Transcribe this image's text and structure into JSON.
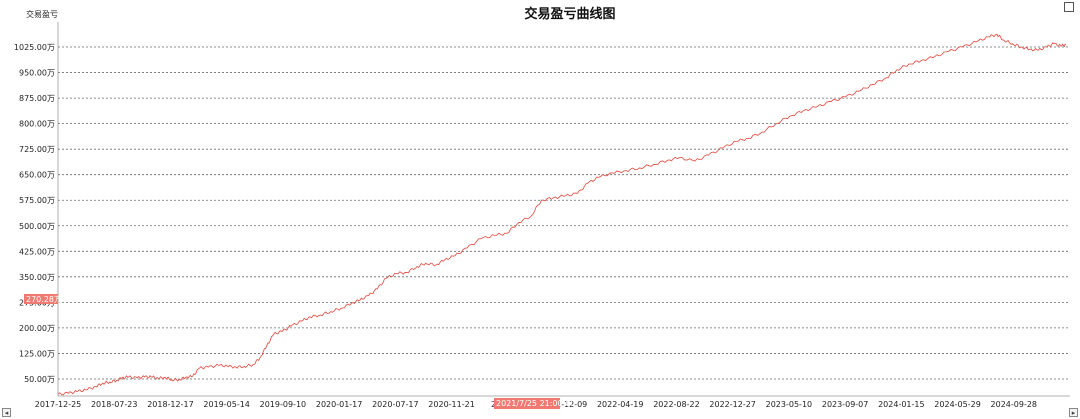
{
  "window": {
    "maximize_icon": "square-icon"
  },
  "scrollbar": {
    "left_arrow": "◂",
    "right_arrow": "▸"
  },
  "chart_data": {
    "type": "line",
    "title": "交易盈亏曲线图",
    "ylabel": "交易盈亏",
    "xlabel": "",
    "ylim": [
      0,
      1075
    ],
    "xlim": [
      "2017-12-25",
      "2024-12-31"
    ],
    "grid": true,
    "line_color": "#e05a4f",
    "y_ticks": [
      50,
      125,
      200,
      275,
      350,
      425,
      500,
      575,
      650,
      725,
      800,
      875,
      950,
      1025
    ],
    "y_tick_labels": [
      "50.00万",
      "125.00万",
      "200.00万",
      "275.00万",
      "350.00万",
      "425.00万",
      "500.00万",
      "575.00万",
      "650.00万",
      "725.00万",
      "800.00万",
      "875.00万",
      "950.00万",
      "1025.00万"
    ],
    "x_tick_labels": [
      "2017-12-25",
      "2018-07-23",
      "2018-12-17",
      "2019-05-14",
      "2019-09-10",
      "2020-01-17",
      "2020-07-17",
      "2020-11-21",
      "2021-03",
      "2021-12-09",
      "2022-04-19",
      "2022-08-22",
      "2022-12-27",
      "2023-05-10",
      "2023-09-07",
      "2024-01-15",
      "2024-05-29",
      "2024-09-28"
    ],
    "crosshair": {
      "y_value_label": "270.28万",
      "x_value_label": "2021/7/25 21:00:00",
      "color": "#f07a72"
    },
    "series": [
      {
        "points": [
          [
            0,
            5
          ],
          [
            0.6,
            8
          ],
          [
            1.1,
            13
          ],
          [
            1.6,
            18
          ],
          [
            2.2,
            28
          ],
          [
            2.6,
            38
          ],
          [
            3.0,
            41
          ],
          [
            3.4,
            46
          ],
          [
            3.7,
            53
          ],
          [
            4.1,
            56
          ],
          [
            4.6,
            53
          ],
          [
            5.0,
            56
          ],
          [
            5.4,
            56
          ],
          [
            5.8,
            52
          ],
          [
            6.2,
            55
          ],
          [
            6.6,
            48
          ],
          [
            7.0,
            48
          ],
          [
            7.4,
            55
          ],
          [
            7.8,
            58
          ],
          [
            8.2,
            82
          ],
          [
            8.7,
            85
          ],
          [
            9.3,
            90
          ],
          [
            9.8,
            88
          ],
          [
            10.3,
            85
          ],
          [
            10.8,
            87
          ],
          [
            11.3,
            92
          ],
          [
            11.7,
            112
          ],
          [
            12.1,
            148
          ],
          [
            12.5,
            182
          ],
          [
            13.0,
            190
          ],
          [
            13.5,
            205
          ],
          [
            14.1,
            220
          ],
          [
            14.6,
            232
          ],
          [
            15.2,
            238
          ],
          [
            15.8,
            248
          ],
          [
            16.4,
            258
          ],
          [
            17.0,
            272
          ],
          [
            17.5,
            282
          ],
          [
            18.0,
            295
          ],
          [
            18.5,
            315
          ],
          [
            19.0,
            345
          ],
          [
            19.6,
            360
          ],
          [
            20.2,
            363
          ],
          [
            20.8,
            380
          ],
          [
            21.3,
            390
          ],
          [
            21.9,
            385
          ],
          [
            22.4,
            400
          ],
          [
            23.0,
            412
          ],
          [
            23.7,
            435
          ],
          [
            24.5,
            462
          ],
          [
            25.3,
            472
          ],
          [
            26.0,
            478
          ],
          [
            26.7,
            510
          ],
          [
            27.4,
            528
          ],
          [
            28.0,
            575
          ],
          [
            28.7,
            582
          ],
          [
            29.4,
            588
          ],
          [
            30.1,
            595
          ],
          [
            30.7,
            625
          ],
          [
            31.3,
            642
          ],
          [
            32.1,
            655
          ],
          [
            32.9,
            662
          ],
          [
            33.7,
            670
          ],
          [
            34.5,
            680
          ],
          [
            35.3,
            692
          ],
          [
            36.0,
            700
          ],
          [
            36.9,
            690
          ],
          [
            37.7,
            708
          ],
          [
            38.5,
            728
          ],
          [
            39.3,
            748
          ],
          [
            40.0,
            757
          ],
          [
            40.8,
            775
          ],
          [
            41.6,
            800
          ],
          [
            42.4,
            822
          ],
          [
            43.2,
            838
          ],
          [
            44.0,
            850
          ],
          [
            44.8,
            865
          ],
          [
            45.6,
            878
          ],
          [
            46.4,
            895
          ],
          [
            47.2,
            915
          ],
          [
            48.0,
            935
          ],
          [
            48.6,
            958
          ],
          [
            49.3,
            975
          ],
          [
            50.0,
            985
          ],
          [
            50.8,
            997
          ],
          [
            51.6,
            1012
          ],
          [
            52.4,
            1025
          ],
          [
            53.2,
            1040
          ],
          [
            53.9,
            1055
          ],
          [
            54.4,
            1062
          ],
          [
            54.8,
            1045
          ],
          [
            55.3,
            1035
          ],
          [
            55.8,
            1025
          ],
          [
            56.3,
            1018
          ],
          [
            56.8,
            1016
          ],
          [
            57.3,
            1025
          ],
          [
            57.7,
            1035
          ],
          [
            58.1,
            1028
          ],
          [
            58.4,
            1032
          ]
        ]
      }
    ]
  }
}
